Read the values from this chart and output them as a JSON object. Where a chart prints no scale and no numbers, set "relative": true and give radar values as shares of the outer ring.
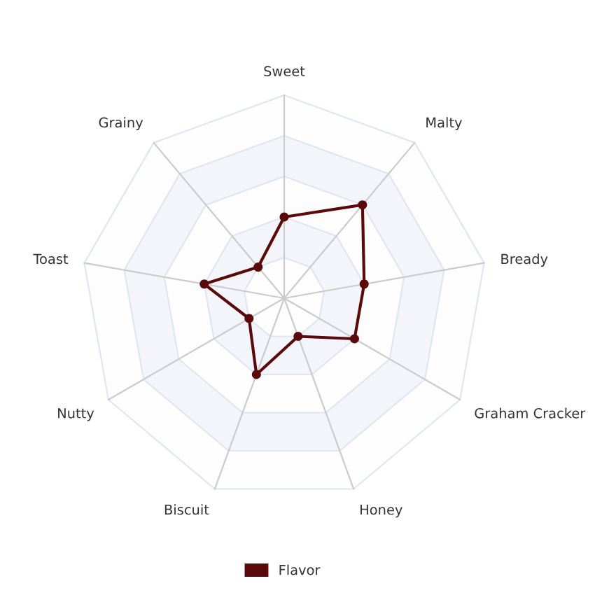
{
  "chart_data": {
    "type": "radar",
    "relative": true,
    "grid": true,
    "legend": "bottom",
    "marker": "circle",
    "categories": [
      "Sweet",
      "Malty",
      "Bready",
      "Graham Cracker",
      "Honey",
      "Biscuit",
      "Nutty",
      "Toast",
      "Grainy"
    ],
    "series": [
      {
        "name": "Flavor",
        "color": "#5a0a0a",
        "values": [
          0.4,
          0.6,
          0.4,
          0.4,
          0.2,
          0.4,
          0.2,
          0.4,
          0.2
        ]
      }
    ]
  }
}
